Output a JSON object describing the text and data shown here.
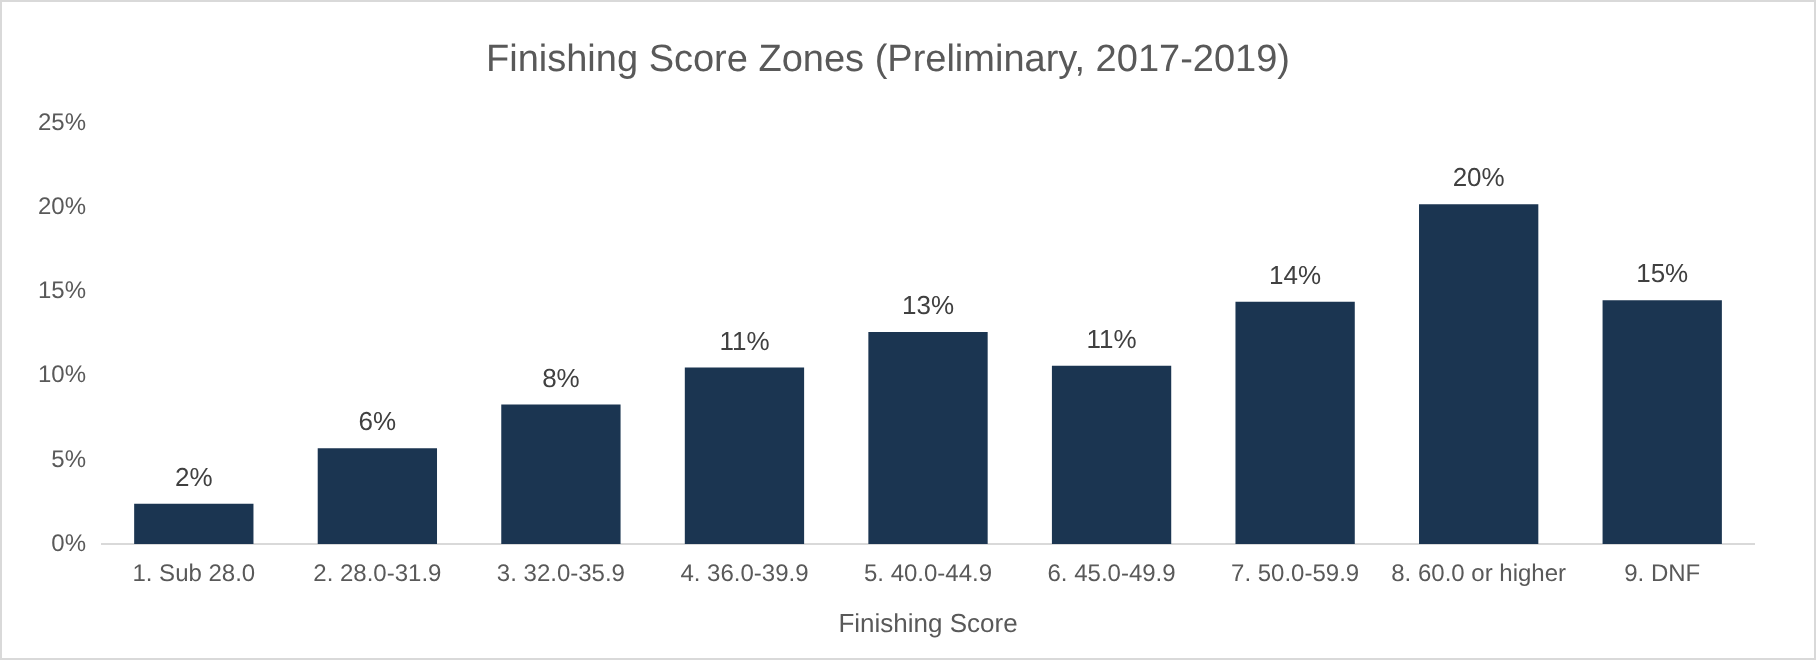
{
  "chart_data": {
    "type": "bar",
    "title": "Finishing Score Zones (Preliminary, 2017-2019)",
    "xlabel": "Finishing Score",
    "categories": [
      "1. Sub 28.0",
      "2. 28.0-31.9",
      "3. 32.0-35.9",
      "4. 36.0-39.9",
      "5. 40.0-44.9",
      "6. 45.0-49.9",
      "7. 50.0-59.9",
      "8. 60.0 or higher",
      "9. DNF"
    ],
    "values": [
      2.4,
      5.7,
      8.3,
      10.5,
      12.6,
      10.6,
      14.4,
      20.2,
      14.5
    ],
    "value_labels": [
      "2%",
      "6%",
      "8%",
      "11%",
      "13%",
      "11%",
      "14%",
      "20%",
      "15%"
    ],
    "color": "#1b3551",
    "ylim": [
      0,
      25
    ],
    "yticks": [
      {
        "value": 0,
        "label": "0%"
      },
      {
        "value": 5,
        "label": "5%"
      },
      {
        "value": 10,
        "label": "10%"
      },
      {
        "value": 15,
        "label": "15%"
      },
      {
        "value": 20,
        "label": "20%"
      },
      {
        "value": 25,
        "label": "25%"
      }
    ],
    "legend": false
  }
}
